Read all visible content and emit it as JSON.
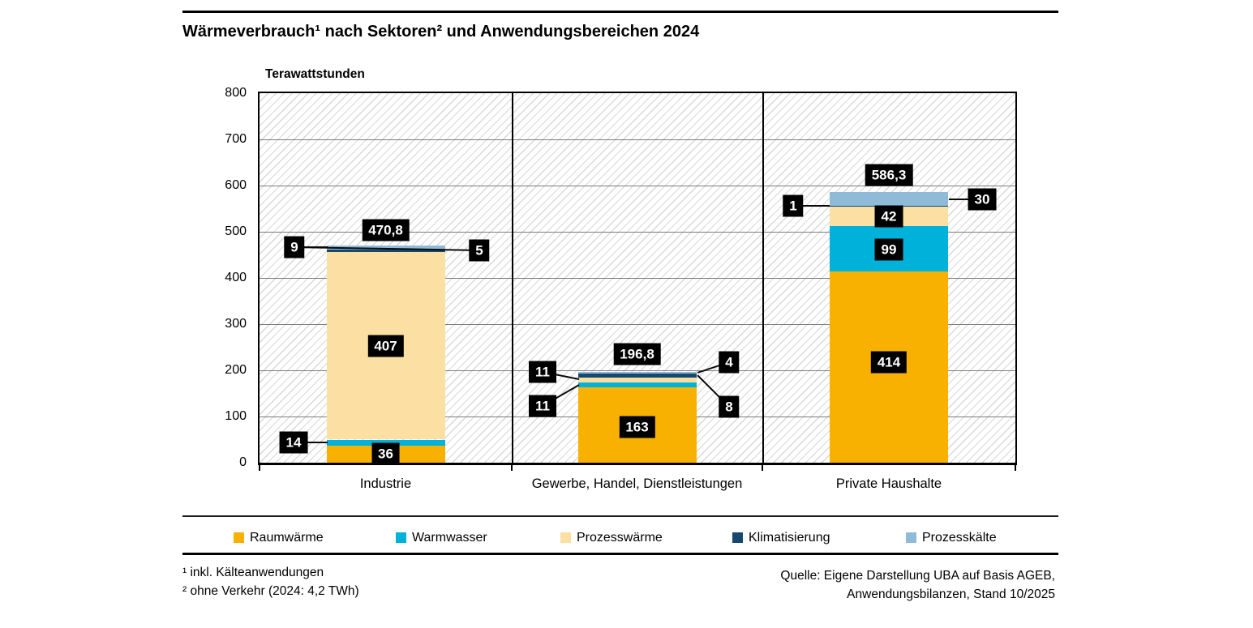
{
  "header": {
    "title": "Wärmeverbrauch¹ nach Sektoren² und Anwendungsbereichen 2024"
  },
  "chart_data": {
    "type": "bar",
    "stacked": true,
    "title": "Wärmeverbrauch¹ nach Sektoren² und Anwendungsbereichen 2024",
    "ylabel": "Terawattstunden",
    "xlabel": "",
    "ylim": [
      0,
      800
    ],
    "ytick_step": 100,
    "grid": "horizontal-gray-on-hatched-background",
    "legend_position": "bottom",
    "categories": [
      "Industrie",
      "Gewerbe, Handel, Dienstleistungen",
      "Private Haushalte"
    ],
    "series": [
      {
        "name": "Raumwärme",
        "color": "#F8B100",
        "values": [
          36,
          163,
          414
        ]
      },
      {
        "name": "Warmwasser",
        "color": "#00B2DA",
        "values": [
          14,
          11,
          99
        ]
      },
      {
        "name": "Prozesswärme",
        "color": "#FBDFA3",
        "values": [
          407,
          11,
          42
        ]
      },
      {
        "name": "Klimatisierung",
        "color": "#17486F",
        "values": [
          5,
          8,
          1
        ]
      },
      {
        "name": "Prozesskälte",
        "color": "#8FBBD9",
        "values": [
          9,
          4,
          30
        ]
      }
    ],
    "totals": [
      470.8,
      196.8,
      586.3
    ],
    "total_labels": [
      {
        "text": "470,8",
        "x": 155.5,
        "y": 169
      },
      {
        "text": "196,8",
        "x": 465.5,
        "y": 322
      },
      {
        "text": "586,3",
        "x": 776,
        "y": 101
      }
    ],
    "bar_labels": [
      [
        {
          "series": "Raumwärme",
          "text": "36",
          "mode": "inside",
          "x": 155.5,
          "y": 445
        },
        {
          "series": "Warmwasser",
          "text": "14",
          "mode": "callout",
          "box_x": 42,
          "box_y": 431,
          "attach_x": 84,
          "attach_y": 431
        },
        {
          "series": "Prozesswärme",
          "text": "407",
          "mode": "inside",
          "x": 155.5,
          "y": 312
        },
        {
          "series": "Klimatisierung",
          "text": "5",
          "mode": "callout",
          "box_x": 271,
          "box_y": 194,
          "attach_x": 43,
          "attach_y": 190
        },
        {
          "series": "Prozesskälte",
          "text": "9",
          "mode": "callout",
          "box_x": 43,
          "box_y": 190,
          "attach_x": 84,
          "attach_y": 190
        }
      ],
      [
        {
          "series": "Raumwärme",
          "text": "163",
          "mode": "inside",
          "x": 465.5,
          "y": 412
        },
        {
          "series": "Warmwasser",
          "text": "11",
          "mode": "callout",
          "box_x": 349,
          "box_y": 386,
          "attach_x": 394,
          "attach_y": 360
        },
        {
          "series": "Prozesswärme",
          "text": "11",
          "mode": "callout",
          "box_x": 349,
          "box_y": 344,
          "attach_x": 394,
          "attach_y": 353
        },
        {
          "series": "Klimatisierung",
          "text": "8",
          "mode": "callout",
          "box_x": 579,
          "box_y": 387,
          "attach_x": 540,
          "attach_y": 348
        },
        {
          "series": "Prozesskälte",
          "text": "4",
          "mode": "callout",
          "box_x": 579,
          "box_y": 332,
          "attach_x": 540,
          "attach_y": 345
        }
      ],
      [
        {
          "series": "Raumwärme",
          "text": "414",
          "mode": "inside",
          "x": 776,
          "y": 332
        },
        {
          "series": "Warmwasser",
          "text": "99",
          "mode": "inside",
          "x": 776,
          "y": 193
        },
        {
          "series": "Prozesswärme",
          "text": "42",
          "mode": "inside",
          "x": 776,
          "y": 152
        },
        {
          "series": "Klimatisierung",
          "text": "1",
          "mode": "callout",
          "box_x": 658,
          "box_y": 139,
          "attach_x": 703,
          "attach_y": 139
        },
        {
          "series": "Prozesskälte",
          "text": "30",
          "mode": "callout",
          "box_x": 891,
          "box_y": 131,
          "attach_x": 850,
          "attach_y": 131
        }
      ]
    ]
  },
  "legend": {
    "items": [
      {
        "label": "Raumwärme",
        "color": "#F8B100"
      },
      {
        "label": "Warmwasser",
        "color": "#00B2DA"
      },
      {
        "label": "Prozesswärme",
        "color": "#FBDFA3"
      },
      {
        "label": "Klimatisierung",
        "color": "#17486F"
      },
      {
        "label": "Prozesskälte",
        "color": "#8FBBD9"
      }
    ]
  },
  "footer": {
    "footnote1": "¹ inkl. Kälteanwendungen",
    "footnote2": "² ohne Verkehr (2024: 4,2 TWh)",
    "source_line1": "Quelle: Eigene Darstellung UBA auf Basis AGEB,",
    "source_line2": "Anwendungsbilanzen, Stand 10/2025"
  }
}
